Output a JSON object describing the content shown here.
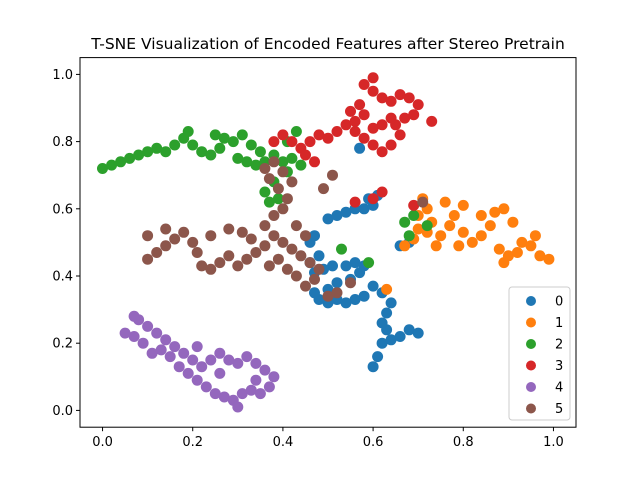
{
  "chart_data": {
    "type": "scatter",
    "title": "T-SNE Visualization of Encoded Features after Stereo Pretrain",
    "xlabel": "",
    "ylabel": "",
    "xlim": [
      -0.05,
      1.05
    ],
    "ylim": [
      1.05,
      -0.05
    ],
    "y_inverted": true,
    "xticks": [
      0.0,
      0.2,
      0.4,
      0.6,
      0.8,
      1.0
    ],
    "yticks": [
      0.0,
      0.2,
      0.4,
      0.6,
      0.8,
      1.0
    ],
    "xtick_labels": [
      "0.0",
      "0.2",
      "0.4",
      "0.6",
      "0.8",
      "1.0"
    ],
    "ytick_labels": [
      "0.0",
      "0.2",
      "0.4",
      "0.6",
      "0.8",
      "1.0"
    ],
    "grid": false,
    "legend_position": "lower-right",
    "series": [
      {
        "name": "0",
        "color": "#1f77b4",
        "points": [
          [
            0.6,
            0.13
          ],
          [
            0.61,
            0.16
          ],
          [
            0.62,
            0.2
          ],
          [
            0.63,
            0.24
          ],
          [
            0.64,
            0.21
          ],
          [
            0.66,
            0.22
          ],
          [
            0.68,
            0.24
          ],
          [
            0.7,
            0.23
          ],
          [
            0.62,
            0.26
          ],
          [
            0.63,
            0.29
          ],
          [
            0.64,
            0.32
          ],
          [
            0.62,
            0.35
          ],
          [
            0.6,
            0.37
          ],
          [
            0.58,
            0.34
          ],
          [
            0.56,
            0.33
          ],
          [
            0.54,
            0.32
          ],
          [
            0.52,
            0.33
          ],
          [
            0.5,
            0.32
          ],
          [
            0.48,
            0.33
          ],
          [
            0.47,
            0.35
          ],
          [
            0.5,
            0.36
          ],
          [
            0.52,
            0.38
          ],
          [
            0.55,
            0.39
          ],
          [
            0.57,
            0.41
          ],
          [
            0.58,
            0.43
          ],
          [
            0.56,
            0.44
          ],
          [
            0.54,
            0.43
          ],
          [
            0.51,
            0.43
          ],
          [
            0.49,
            0.42
          ],
          [
            0.47,
            0.41
          ],
          [
            0.46,
            0.44
          ],
          [
            0.48,
            0.46
          ],
          [
            0.46,
            0.5
          ],
          [
            0.47,
            0.52
          ],
          [
            0.5,
            0.57
          ],
          [
            0.52,
            0.58
          ],
          [
            0.54,
            0.59
          ],
          [
            0.56,
            0.6
          ],
          [
            0.58,
            0.6
          ],
          [
            0.6,
            0.61
          ],
          [
            0.59,
            0.63
          ],
          [
            0.61,
            0.64
          ],
          [
            0.57,
            0.78
          ],
          [
            0.66,
            0.49
          ],
          [
            0.68,
            0.5
          ]
        ]
      },
      {
        "name": "1",
        "color": "#ff7f0e",
        "points": [
          [
            0.67,
            0.49
          ],
          [
            0.69,
            0.51
          ],
          [
            0.7,
            0.54
          ],
          [
            0.72,
            0.53
          ],
          [
            0.73,
            0.56
          ],
          [
            0.75,
            0.52
          ],
          [
            0.77,
            0.55
          ],
          [
            0.78,
            0.58
          ],
          [
            0.8,
            0.53
          ],
          [
            0.82,
            0.5
          ],
          [
            0.84,
            0.52
          ],
          [
            0.86,
            0.55
          ],
          [
            0.87,
            0.59
          ],
          [
            0.88,
            0.48
          ],
          [
            0.89,
            0.44
          ],
          [
            0.9,
            0.46
          ],
          [
            0.92,
            0.47
          ],
          [
            0.93,
            0.5
          ],
          [
            0.95,
            0.49
          ],
          [
            0.97,
            0.46
          ],
          [
            0.99,
            0.45
          ],
          [
            0.96,
            0.52
          ],
          [
            0.91,
            0.56
          ],
          [
            0.89,
            0.6
          ],
          [
            0.84,
            0.58
          ],
          [
            0.8,
            0.61
          ],
          [
            0.76,
            0.62
          ],
          [
            0.72,
            0.6
          ],
          [
            0.7,
            0.58
          ],
          [
            0.74,
            0.49
          ],
          [
            0.79,
            0.49
          ],
          [
            0.63,
            0.36
          ],
          [
            0.71,
            0.63
          ]
        ]
      },
      {
        "name": "2",
        "color": "#2ca02c",
        "points": [
          [
            0.0,
            0.72
          ],
          [
            0.02,
            0.73
          ],
          [
            0.04,
            0.74
          ],
          [
            0.06,
            0.75
          ],
          [
            0.08,
            0.76
          ],
          [
            0.1,
            0.77
          ],
          [
            0.12,
            0.78
          ],
          [
            0.14,
            0.77
          ],
          [
            0.16,
            0.79
          ],
          [
            0.18,
            0.81
          ],
          [
            0.2,
            0.79
          ],
          [
            0.22,
            0.77
          ],
          [
            0.24,
            0.76
          ],
          [
            0.26,
            0.78
          ],
          [
            0.27,
            0.81
          ],
          [
            0.29,
            0.8
          ],
          [
            0.31,
            0.82
          ],
          [
            0.33,
            0.79
          ],
          [
            0.35,
            0.77
          ],
          [
            0.36,
            0.74
          ],
          [
            0.34,
            0.73
          ],
          [
            0.32,
            0.74
          ],
          [
            0.3,
            0.75
          ],
          [
            0.38,
            0.76
          ],
          [
            0.4,
            0.74
          ],
          [
            0.42,
            0.75
          ],
          [
            0.44,
            0.73
          ],
          [
            0.41,
            0.71
          ],
          [
            0.38,
            0.68
          ],
          [
            0.36,
            0.65
          ],
          [
            0.37,
            0.62
          ],
          [
            0.39,
            0.63
          ],
          [
            0.19,
            0.83
          ],
          [
            0.25,
            0.82
          ],
          [
            0.41,
            0.8
          ],
          [
            0.43,
            0.83
          ],
          [
            0.53,
            0.48
          ],
          [
            0.59,
            0.44
          ],
          [
            0.68,
            0.52
          ],
          [
            0.67,
            0.56
          ],
          [
            0.69,
            0.58
          ],
          [
            0.72,
            0.55
          ]
        ]
      },
      {
        "name": "3",
        "color": "#d62728",
        "points": [
          [
            0.38,
            0.8
          ],
          [
            0.4,
            0.82
          ],
          [
            0.42,
            0.8
          ],
          [
            0.44,
            0.78
          ],
          [
            0.46,
            0.8
          ],
          [
            0.48,
            0.82
          ],
          [
            0.5,
            0.81
          ],
          [
            0.52,
            0.83
          ],
          [
            0.54,
            0.85
          ],
          [
            0.56,
            0.83
          ],
          [
            0.58,
            0.81
          ],
          [
            0.6,
            0.79
          ],
          [
            0.62,
            0.77
          ],
          [
            0.64,
            0.79
          ],
          [
            0.66,
            0.82
          ],
          [
            0.65,
            0.85
          ],
          [
            0.67,
            0.87
          ],
          [
            0.69,
            0.88
          ],
          [
            0.7,
            0.91
          ],
          [
            0.68,
            0.93
          ],
          [
            0.66,
            0.94
          ],
          [
            0.64,
            0.92
          ],
          [
            0.62,
            0.93
          ],
          [
            0.6,
            0.95
          ],
          [
            0.58,
            0.97
          ],
          [
            0.6,
            0.99
          ],
          [
            0.57,
            0.91
          ],
          [
            0.55,
            0.89
          ],
          [
            0.56,
            0.86
          ],
          [
            0.58,
            0.88
          ],
          [
            0.62,
            0.85
          ],
          [
            0.64,
            0.87
          ],
          [
            0.6,
            0.84
          ],
          [
            0.45,
            0.76
          ],
          [
            0.47,
            0.74
          ],
          [
            0.56,
            0.62
          ],
          [
            0.6,
            0.63
          ],
          [
            0.62,
            0.65
          ],
          [
            0.69,
            0.61
          ],
          [
            0.73,
            0.86
          ]
        ]
      },
      {
        "name": "4",
        "color": "#9467bd",
        "points": [
          [
            0.05,
            0.23
          ],
          [
            0.07,
            0.22
          ],
          [
            0.09,
            0.2
          ],
          [
            0.11,
            0.17
          ],
          [
            0.13,
            0.18
          ],
          [
            0.15,
            0.16
          ],
          [
            0.17,
            0.13
          ],
          [
            0.19,
            0.11
          ],
          [
            0.21,
            0.09
          ],
          [
            0.23,
            0.07
          ],
          [
            0.25,
            0.05
          ],
          [
            0.27,
            0.04
          ],
          [
            0.29,
            0.03
          ],
          [
            0.31,
            0.05
          ],
          [
            0.33,
            0.06
          ],
          [
            0.35,
            0.05
          ],
          [
            0.37,
            0.07
          ],
          [
            0.38,
            0.1
          ],
          [
            0.36,
            0.12
          ],
          [
            0.34,
            0.14
          ],
          [
            0.32,
            0.16
          ],
          [
            0.3,
            0.14
          ],
          [
            0.28,
            0.15
          ],
          [
            0.26,
            0.17
          ],
          [
            0.24,
            0.15
          ],
          [
            0.22,
            0.13
          ],
          [
            0.2,
            0.15
          ],
          [
            0.18,
            0.17
          ],
          [
            0.16,
            0.19
          ],
          [
            0.14,
            0.21
          ],
          [
            0.12,
            0.23
          ],
          [
            0.1,
            0.25
          ],
          [
            0.08,
            0.27
          ],
          [
            0.07,
            0.28
          ],
          [
            0.3,
            0.01
          ],
          [
            0.21,
            0.19
          ],
          [
            0.26,
            0.11
          ],
          [
            0.34,
            0.09
          ]
        ]
      },
      {
        "name": "5",
        "color": "#8c564b",
        "points": [
          [
            0.1,
            0.45
          ],
          [
            0.12,
            0.47
          ],
          [
            0.14,
            0.49
          ],
          [
            0.16,
            0.51
          ],
          [
            0.18,
            0.53
          ],
          [
            0.2,
            0.5
          ],
          [
            0.21,
            0.47
          ],
          [
            0.22,
            0.43
          ],
          [
            0.24,
            0.42
          ],
          [
            0.26,
            0.44
          ],
          [
            0.28,
            0.46
          ],
          [
            0.3,
            0.43
          ],
          [
            0.32,
            0.45
          ],
          [
            0.34,
            0.47
          ],
          [
            0.36,
            0.49
          ],
          [
            0.38,
            0.52
          ],
          [
            0.4,
            0.5
          ],
          [
            0.42,
            0.48
          ],
          [
            0.44,
            0.46
          ],
          [
            0.46,
            0.44
          ],
          [
            0.48,
            0.42
          ],
          [
            0.47,
            0.39
          ],
          [
            0.45,
            0.37
          ],
          [
            0.43,
            0.4
          ],
          [
            0.41,
            0.42
          ],
          [
            0.39,
            0.45
          ],
          [
            0.37,
            0.43
          ],
          [
            0.36,
            0.55
          ],
          [
            0.38,
            0.58
          ],
          [
            0.4,
            0.6
          ],
          [
            0.41,
            0.63
          ],
          [
            0.39,
            0.66
          ],
          [
            0.37,
            0.69
          ],
          [
            0.36,
            0.72
          ],
          [
            0.38,
            0.74
          ],
          [
            0.4,
            0.71
          ],
          [
            0.42,
            0.68
          ],
          [
            0.43,
            0.55
          ],
          [
            0.45,
            0.52
          ],
          [
            0.14,
            0.54
          ],
          [
            0.1,
            0.52
          ],
          [
            0.24,
            0.52
          ],
          [
            0.28,
            0.54
          ],
          [
            0.31,
            0.53
          ],
          [
            0.33,
            0.51
          ],
          [
            0.5,
            0.34
          ],
          [
            0.52,
            0.35
          ],
          [
            0.49,
            0.66
          ],
          [
            0.51,
            0.7
          ],
          [
            0.71,
            0.62
          ],
          [
            0.55,
            0.38
          ]
        ]
      }
    ]
  }
}
